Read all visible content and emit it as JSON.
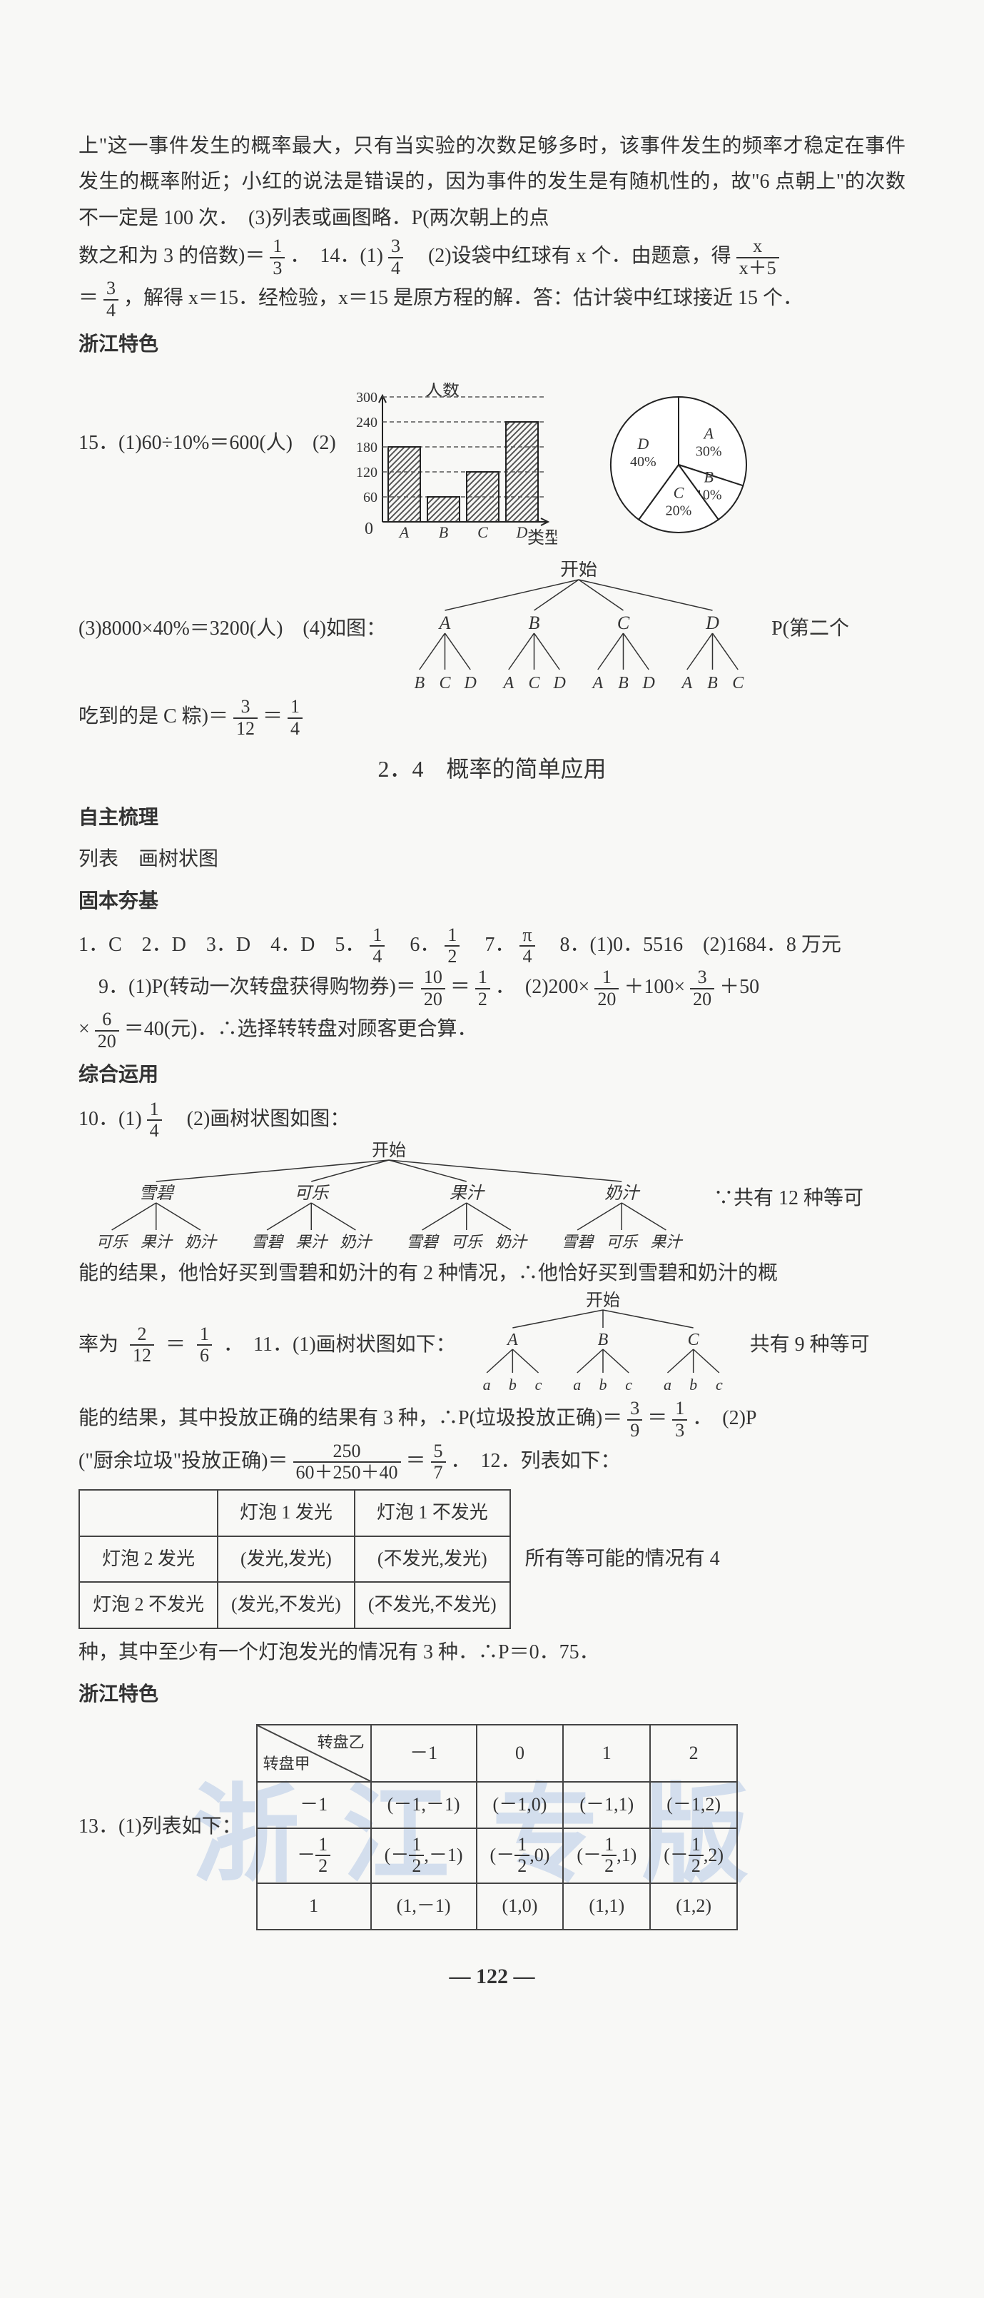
{
  "p1": "上\"这一事件发生的概率最大，只有当实验的次数足够多时，该事件发生的频率才稳定在事件发生的概率附近；小红的说法是错误的，因为事件的发生是有随机性的，故\"6 点朝上\"的次数不一定是 100 次．　(3)列表或画图略．P(两次朝上的点",
  "p2a": "数之和为 3 的倍数)＝",
  "frac13": {
    "num": "1",
    "den": "3"
  },
  "p2b": "．　14．(1)",
  "frac34": {
    "num": "3",
    "den": "4"
  },
  "p2c": "　(2)设袋中红球有 x 个．由题意，得",
  "fracx": {
    "num": "x",
    "den": "x＋5"
  },
  "p3a": "＝",
  "p3b": "，解得 x＝15．经检验，x＝15 是原方程的解．答：估计袋中红球接近 15 个．",
  "zj1": "浙江特色",
  "q15a": "15．(1)60÷10%＝600(人)　(2)",
  "barLabel": "人数",
  "barXLabel": "类型",
  "bar": {
    "yTicks": [
      60,
      120,
      180,
      240,
      300
    ],
    "cats": [
      "A",
      "B",
      "C",
      "D"
    ],
    "values": [
      180,
      60,
      120,
      240
    ],
    "barColor": "#ffffff",
    "hatch": "#555",
    "axis": "#222",
    "dashColor": "#555"
  },
  "pie": {
    "slices": [
      {
        "label": "A",
        "pct": "30%",
        "start": 0,
        "end": 108
      },
      {
        "label": "B",
        "pct": "10%",
        "start": 108,
        "end": 144
      },
      {
        "label": "C",
        "pct": "20%",
        "start": 144,
        "end": 216
      },
      {
        "label": "D",
        "pct": "40%",
        "start": 216,
        "end": 360
      }
    ],
    "stroke": "#222",
    "fill": "#fff"
  },
  "q15c": "(3)8000×40%＝3200(人)　(4)如图：",
  "tree1": {
    "root": "开始",
    "l1": [
      "A",
      "B",
      "C",
      "D"
    ],
    "l2": [
      [
        "B",
        "C",
        "D"
      ],
      [
        "A",
        "C",
        "D"
      ],
      [
        "A",
        "B",
        "D"
      ],
      [
        "A",
        "B",
        "C"
      ]
    ],
    "side": "P(第二个"
  },
  "q15d_a": "吃到的是 C 粽)＝",
  "frac312": {
    "num": "3",
    "den": "12"
  },
  "eq": "＝",
  "frac14": {
    "num": "1",
    "den": "4"
  },
  "secTitle": "2．4　概率的简单应用",
  "zzsl": "自主梳理",
  "zzsl_t": "列表　画树状图",
  "gbkj": "固本夯基",
  "line1a": "1．C　2．D　3．D　4．D　5．",
  "line1b": "　6．",
  "frac12": {
    "num": "1",
    "den": "2"
  },
  "line1c": "　7．",
  "fracpi4": {
    "num": "π",
    "den": "4"
  },
  "line1d": "　8．(1)0．5516　(2)1684．8 万元",
  "line2a": "　9．(1)P(转动一次转盘获得购物券)＝",
  "frac1020": {
    "num": "10",
    "den": "20"
  },
  "line2b": "．　(2)200×",
  "frac120": {
    "num": "1",
    "den": "20"
  },
  "line2c": "＋100×",
  "frac320": {
    "num": "3",
    "den": "20"
  },
  "line2d": "＋50",
  "line3a": "×",
  "frac620": {
    "num": "6",
    "den": "20"
  },
  "line3b": "＝40(元)．∴选择转转盘对顾客更合算．",
  "zhyy": "综合运用",
  "q10a": "10．(1)",
  "q10b": "　(2)画树状图如图：",
  "tree2": {
    "root": "开始",
    "l1": [
      "雪碧",
      "可乐",
      "果汁",
      "奶汁"
    ],
    "l2": [
      [
        "可乐",
        "果汁",
        "奶汁"
      ],
      [
        "雪碧",
        "果汁",
        "奶汁"
      ],
      [
        "雪碧",
        "可乐",
        "奶汁"
      ],
      [
        "雪碧",
        "可乐",
        "果汁"
      ]
    ],
    "side": "∵共有 12 种等可"
  },
  "q10c": "能的结果，他恰好买到雪碧和奶汁的有 2 种情况，∴他恰好买到雪碧和奶汁的概",
  "q10d_a": "率为",
  "frac212": {
    "num": "2",
    "den": "12"
  },
  "frac16": {
    "num": "1",
    "den": "6"
  },
  "q10d_b": "．　11．(1)画树状图如下：",
  "tree3": {
    "root": "开始",
    "l1": [
      "A",
      "B",
      "C"
    ],
    "l2": [
      [
        "a",
        "b",
        "c"
      ],
      [
        "a",
        "b",
        "c"
      ],
      [
        "a",
        "b",
        "c"
      ]
    ],
    "side": "共有 9 种等可"
  },
  "q11a": "能的结果，其中投放正确的结果有 3 种，∴P(垃圾投放正确)＝",
  "frac39": {
    "num": "3",
    "den": "9"
  },
  "q11b": "．　(2)P",
  "q11c_a": "(\"厨余垃圾\"投放正确)＝",
  "fracBig": {
    "num": "250",
    "den": "60＋250＋40"
  },
  "frac57": {
    "num": "5",
    "den": "7"
  },
  "q11c_b": "．　12．列表如下：",
  "table1": {
    "headers": [
      "",
      "灯泡 1 发光",
      "灯泡 1 不发光"
    ],
    "rows": [
      [
        "灯泡 2 发光",
        "(发光,发光)",
        "(不发光,发光)"
      ],
      [
        "灯泡 2 不发光",
        "(发光,不发光)",
        "(不发光,不发光)"
      ]
    ],
    "side": "所有等可能的情况有 4"
  },
  "q12b": "种，其中至少有一个灯泡发光的情况有 3 种．∴P＝0．75．",
  "zj2": "浙江特色",
  "q13a": "13．(1)列表如下：",
  "table2": {
    "diag": [
      "转盘乙",
      "转盘甲"
    ],
    "cols": [
      "－1",
      "0",
      "1",
      "2"
    ],
    "rows": [
      {
        "h": "－1",
        "cells": [
          "(－1,－1)",
          "(－1,0)",
          "(－1,1)",
          "(－1,2)"
        ]
      },
      {
        "h": "frac_neg_half",
        "cells": [
          "pair_nh_-1",
          "pair_nh_0",
          "pair_nh_1",
          "pair_nh_2"
        ]
      },
      {
        "h": "1",
        "cells": [
          "(1,－1)",
          "(1,0)",
          "(1,1)",
          "(1,2)"
        ]
      }
    ]
  },
  "fracNegHalf": {
    "num": "1",
    "den": "2"
  },
  "pageNum": "122",
  "watermark": "浙江专版",
  "colors": {
    "text": "#333333",
    "border": "#444444",
    "wm": "rgba(180,200,230,0.55)"
  }
}
